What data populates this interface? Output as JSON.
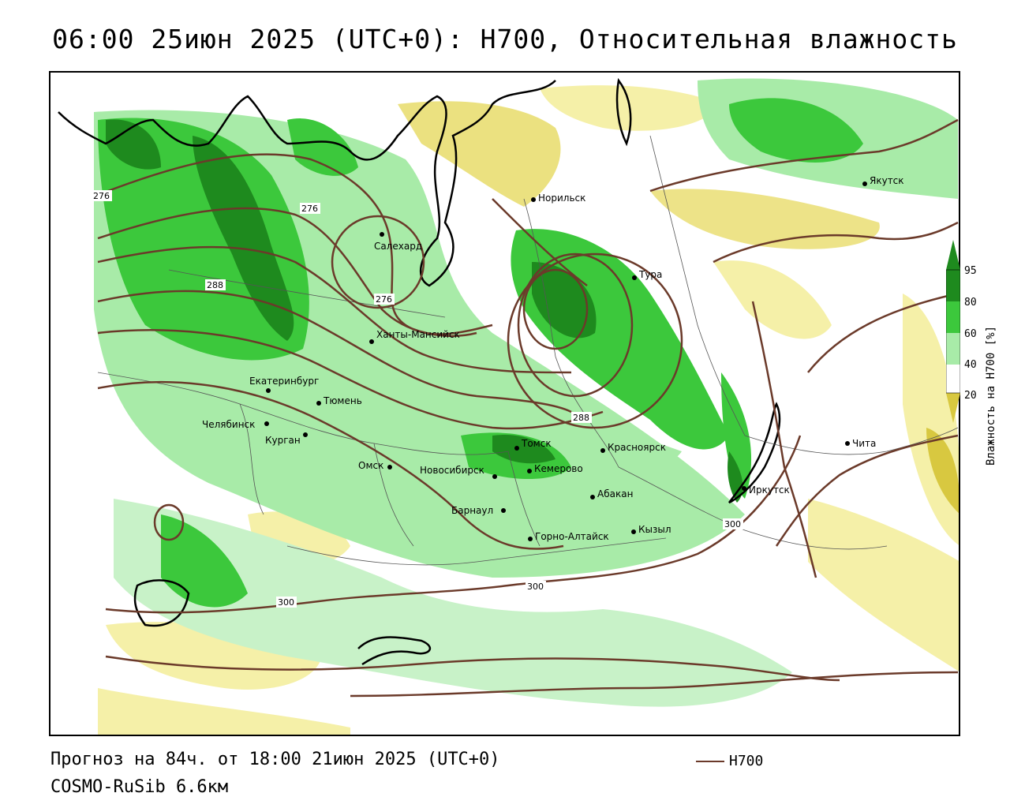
{
  "title": "06:00 25июн 2025 (UTC+0): H700, Относительная влажность",
  "footer": {
    "forecast": "Прогноз на 84ч. от 18:00 21июн 2025 (UTC+0)",
    "model": "COSMO-RuSib 6.6км"
  },
  "legend": {
    "line_label": "H700",
    "line_color": "#6b3a2a"
  },
  "colorbar": {
    "title": "Влажность на H700 [%]",
    "ticks": [
      "95",
      "80",
      "60",
      "40",
      "20"
    ],
    "colors": [
      "#1e8a1e",
      "#3cc83c",
      "#a8eba8",
      "#ffffff",
      "#f5f0a8",
      "#d8c840"
    ]
  },
  "contours": [
    {
      "label": "276"
    },
    {
      "label": "276"
    },
    {
      "label": "276"
    },
    {
      "label": "288"
    },
    {
      "label": "288"
    },
    {
      "label": "300"
    },
    {
      "label": "300"
    },
    {
      "label": "300"
    }
  ],
  "cities": [
    {
      "name": "Якутск"
    },
    {
      "name": "Норильск"
    },
    {
      "name": "Салехард"
    },
    {
      "name": "Тура"
    },
    {
      "name": "Ханты-Мансийск"
    },
    {
      "name": "Екатеринбург"
    },
    {
      "name": "Тюмень"
    },
    {
      "name": "Челябинск"
    },
    {
      "name": "Курган"
    },
    {
      "name": "Омск"
    },
    {
      "name": "Томск"
    },
    {
      "name": "Красноярск"
    },
    {
      "name": "Новосибирск"
    },
    {
      "name": "Кемерово"
    },
    {
      "name": "Абакан"
    },
    {
      "name": "Иркутск"
    },
    {
      "name": "Чита"
    },
    {
      "name": "Барнаул"
    },
    {
      "name": "Горно-Алтайск"
    },
    {
      "name": "Кызыл"
    }
  ]
}
